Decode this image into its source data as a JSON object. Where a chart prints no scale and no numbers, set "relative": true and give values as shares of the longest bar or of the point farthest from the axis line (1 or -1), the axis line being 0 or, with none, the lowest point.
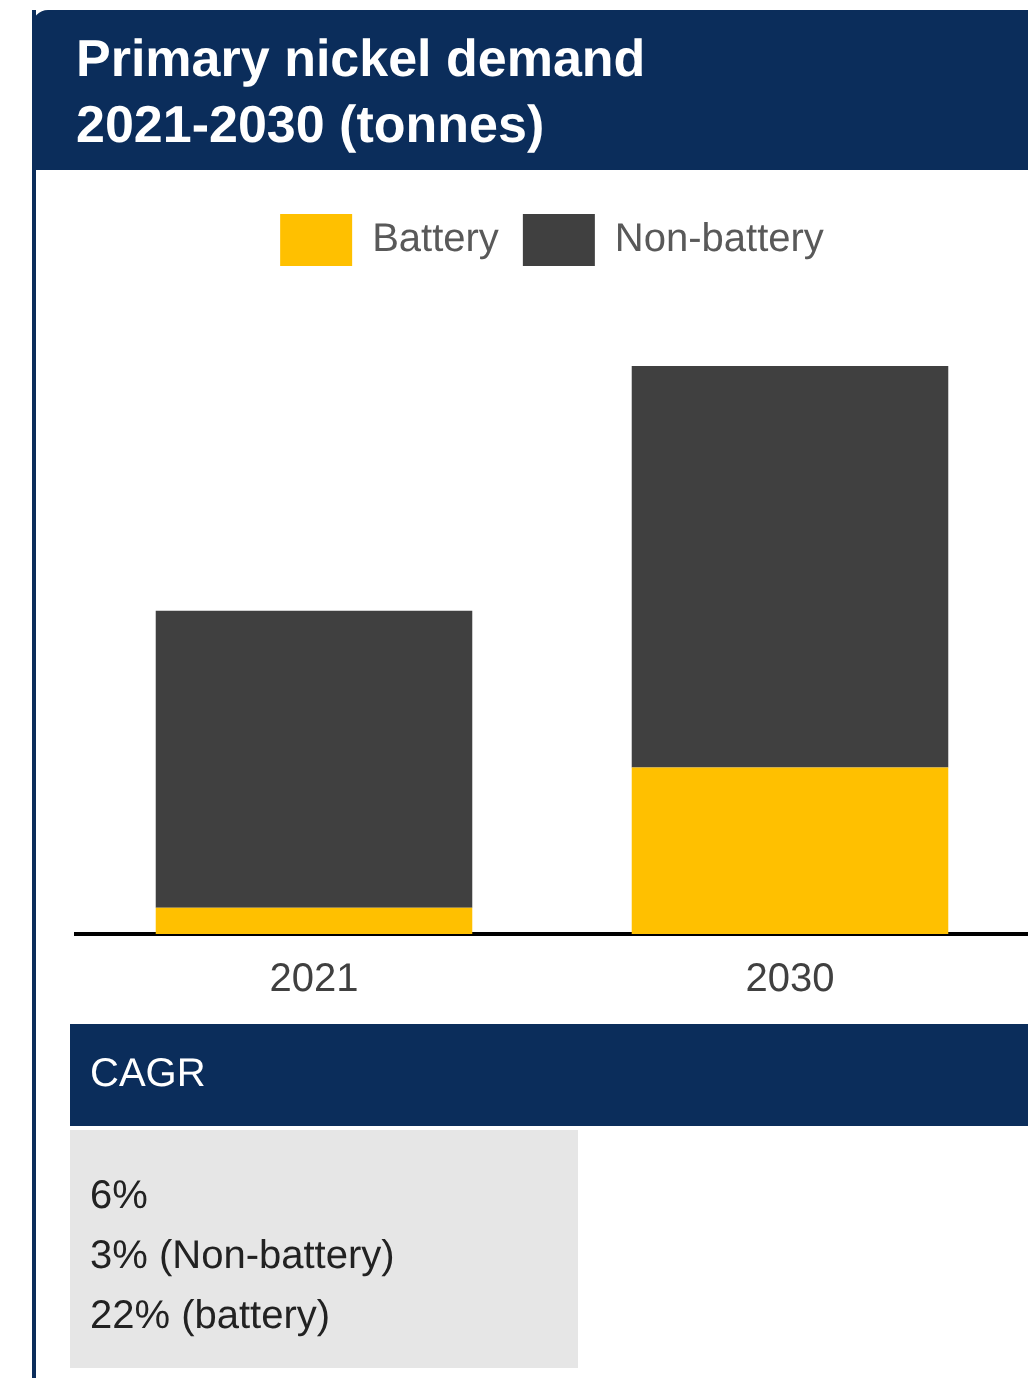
{
  "chart_data": {
    "type": "bar",
    "title": "Primary nickel demand 2021-2030 (tonnes)",
    "categories": [
      "2021",
      "2030"
    ],
    "stacked": true,
    "relative": true,
    "legend": "top",
    "series": [
      {
        "name": "Battery",
        "color": "#ffc000",
        "values": [
          0.046,
          0.293
        ]
      },
      {
        "name": "Non-battery",
        "color": "#404040",
        "values": [
          0.523,
          0.707
        ]
      }
    ],
    "annotations": [
      "CAGR",
      "6%",
      "3% (Non-battery)",
      "22% (battery)"
    ]
  }
}
